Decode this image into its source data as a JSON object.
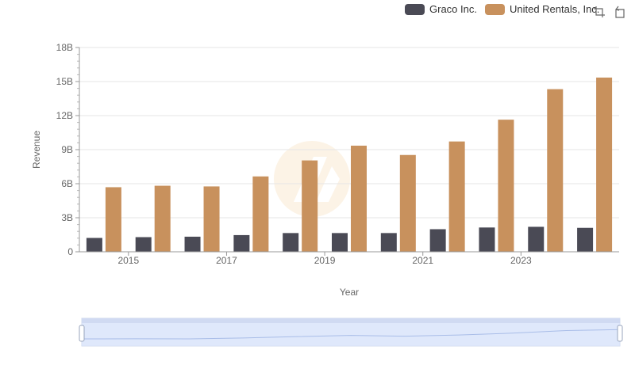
{
  "chart_data": {
    "type": "bar",
    "xlabel": "Year",
    "ylabel": "Revenue",
    "ylim": [
      0,
      18000000000
    ],
    "y_ticks": [
      "0",
      "3B",
      "6B",
      "9B",
      "12B",
      "15B",
      "18B"
    ],
    "x_tick_labels": [
      "2015",
      "2017",
      "2019",
      "2021",
      "2023"
    ],
    "categories": [
      "2014",
      "2015",
      "2016",
      "2017",
      "2018",
      "2019",
      "2020",
      "2021",
      "2022",
      "2023",
      "2024"
    ],
    "series": [
      {
        "name": "Graco Inc.",
        "color": "#4a4a55",
        "values": [
          1220000000,
          1290000000,
          1330000000,
          1470000000,
          1650000000,
          1650000000,
          1650000000,
          1990000000,
          2140000000,
          2200000000,
          2110000000
        ]
      },
      {
        "name": "United Rentals, Inc.",
        "color": "#c8915d",
        "values": [
          5690000000,
          5820000000,
          5760000000,
          6640000000,
          8050000000,
          9350000000,
          8530000000,
          9720000000,
          11640000000,
          14330000000,
          15350000000
        ]
      }
    ],
    "grid": true,
    "legend_position": "top-right"
  },
  "toolbar": {
    "zoom_icon": "zoom-icon",
    "restore_icon": "restore-icon"
  }
}
